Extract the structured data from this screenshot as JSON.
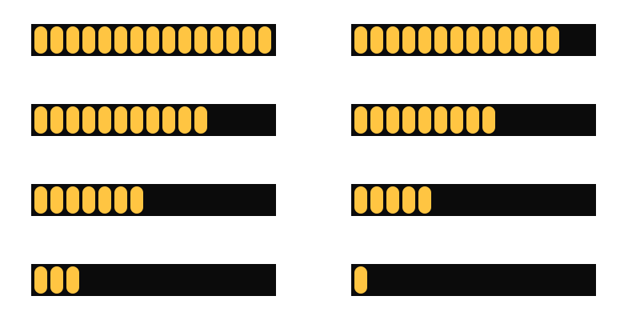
{
  "colors": {
    "track": "#0b0b0b",
    "segment_fill": "#ffc542",
    "background": "#ffffff"
  },
  "segment_capacity": 15,
  "progress_bars": [
    {
      "filled_segments": 15
    },
    {
      "filled_segments": 13
    },
    {
      "filled_segments": 11
    },
    {
      "filled_segments": 9
    },
    {
      "filled_segments": 7
    },
    {
      "filled_segments": 5
    },
    {
      "filled_segments": 3
    },
    {
      "filled_segments": 1
    }
  ]
}
